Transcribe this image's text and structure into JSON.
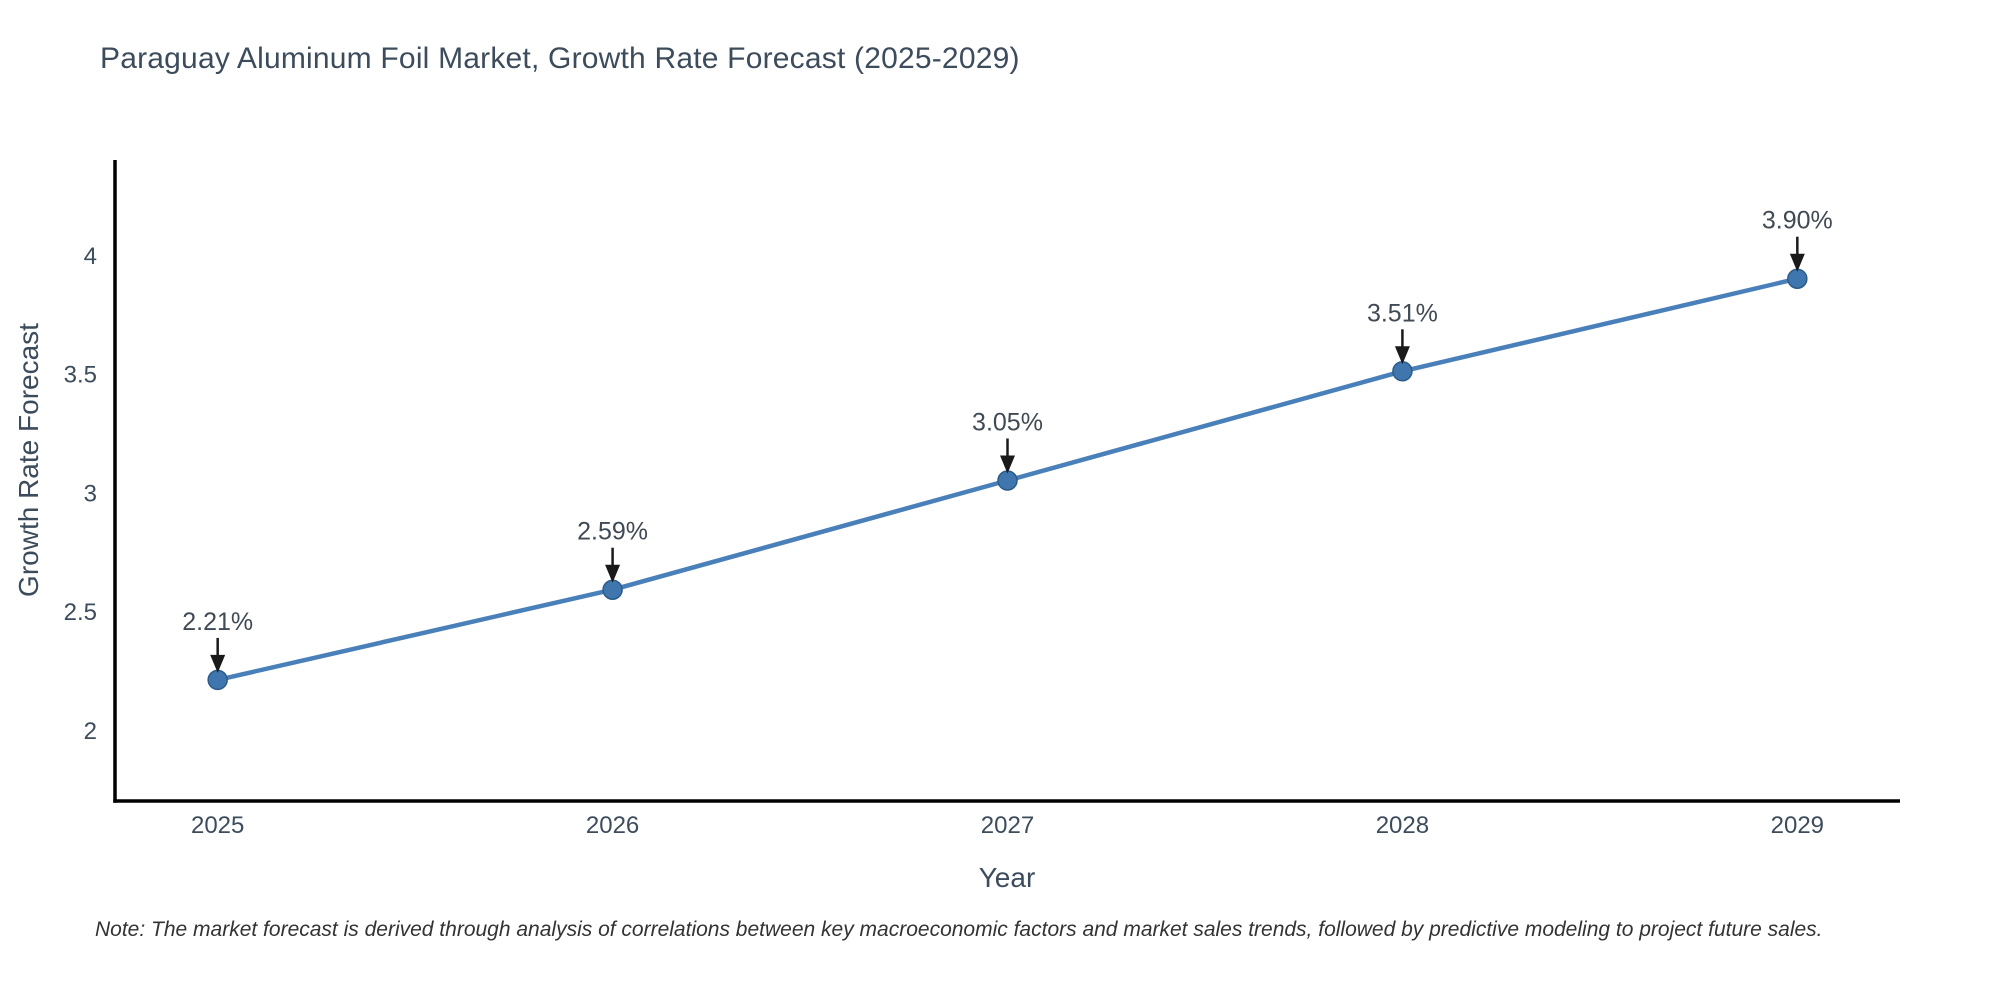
{
  "chart_data": {
    "type": "line",
    "title": "Paraguay Aluminum Foil Market, Growth Rate Forecast (2025-2029)",
    "xlabel": "Year",
    "ylabel": "Growth Rate Forecast",
    "x": [
      2025,
      2026,
      2027,
      2028,
      2029
    ],
    "y": [
      2.21,
      2.59,
      3.05,
      3.51,
      3.9
    ],
    "point_labels": [
      "2.21%",
      "2.59%",
      "3.05%",
      "3.51%",
      "3.90%"
    ],
    "xtick_labels": [
      "2025",
      "2026",
      "2027",
      "2028",
      "2029"
    ],
    "yticks": [
      2,
      2.5,
      3,
      3.5,
      4
    ],
    "ytick_labels": [
      "2",
      "2.5",
      "3",
      "3.5",
      "4"
    ],
    "xlim": [
      2024.74,
      2029.26
    ],
    "ylim": [
      1.7,
      4.4
    ],
    "grid": false,
    "legend_position": "none",
    "colors": {
      "line": "#4a80b9",
      "marker_fill": "#3f76ad",
      "marker_edge": "#2c5c8a",
      "axis": "#000000",
      "arrow": "#1a1a1a",
      "text": "#3d4c5c"
    },
    "note": "Note: The market forecast is derived through analysis of correlations between key macroeconomic factors and market sales trends, followed by predictive modeling to project future sales."
  }
}
